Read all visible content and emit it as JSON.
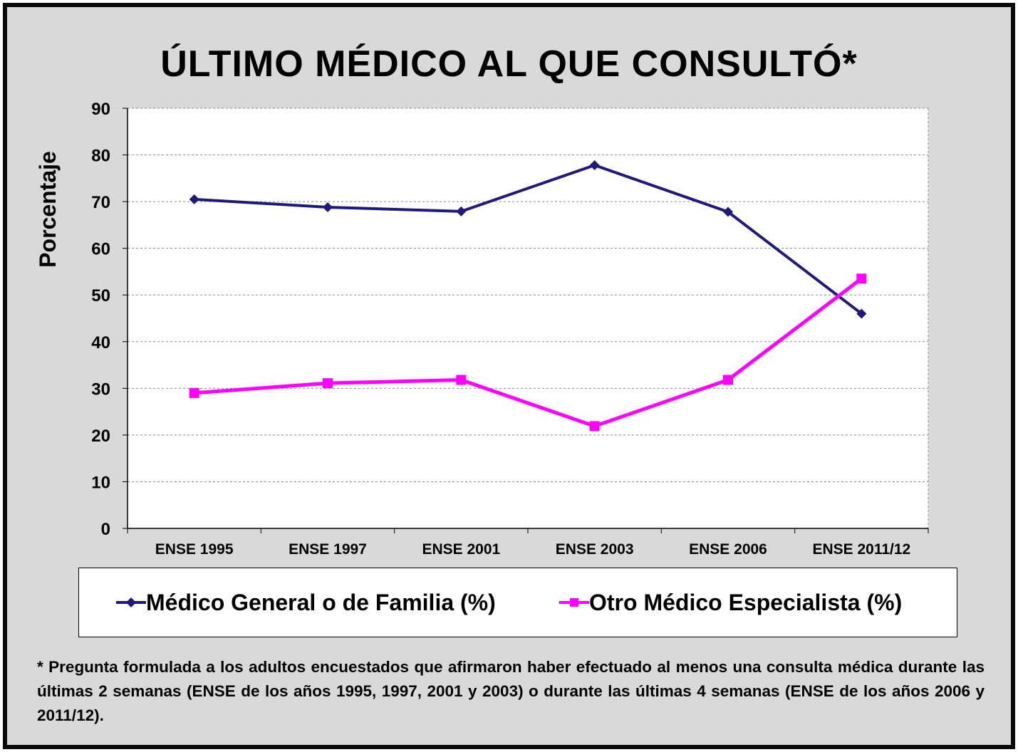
{
  "chart_data": {
    "type": "line",
    "title": "ÚLTIMO MÉDICO AL QUE CONSULTÓ*",
    "ylabel": "Porcentaje",
    "xlabel": "",
    "categories": [
      "ENSE 1995",
      "ENSE 1997",
      "ENSE 2001",
      "ENSE 2003",
      "ENSE 2006",
      "ENSE 2011/12"
    ],
    "ylim": [
      0,
      90
    ],
    "yticks": [
      "0",
      "10",
      "20",
      "30",
      "40",
      "50",
      "60",
      "70",
      "80",
      "90"
    ],
    "grid": true,
    "legend_position": "bottom",
    "series": [
      {
        "name": "Médico General o de Familia (%)",
        "color": "#1f1a7a",
        "marker": "diamond",
        "values": [
          70.5,
          68.8,
          67.9,
          77.8,
          67.8,
          46.0
        ]
      },
      {
        "name": "Otro Médico Especialista (%)",
        "color": "#ff00ff",
        "marker": "square",
        "values": [
          29.0,
          31.1,
          31.8,
          21.9,
          31.8,
          53.5
        ]
      }
    ]
  },
  "footnote": "* Pregunta formulada a los adultos encuestados que afirmaron haber efectuado al menos una consulta médica durante las últimas 2 semanas (ENSE de los años 1995, 1997, 2001 y 2003) o durante las últimas 4 semanas (ENSE de los años 2006 y 2011/12)."
}
